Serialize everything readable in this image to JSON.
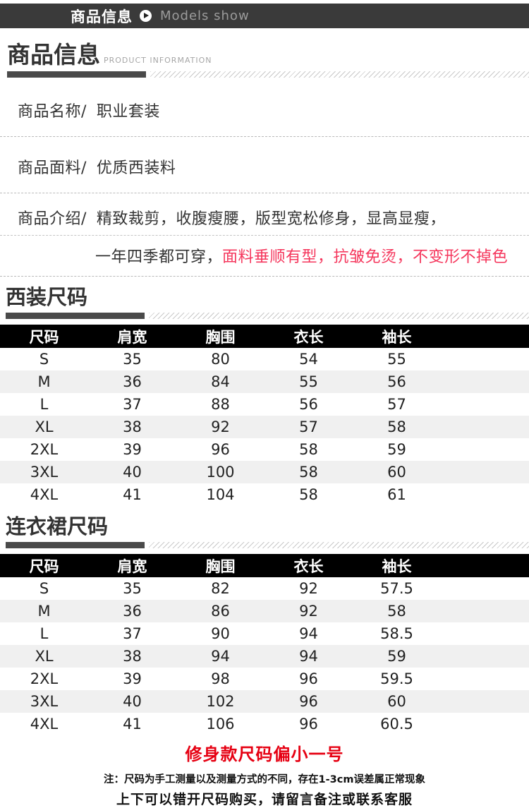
{
  "topbar": {
    "title": "商品信息",
    "subtitle": "Models show"
  },
  "product_info": {
    "heading": "商品信息",
    "heading_en": "PRODUCT INFORMATION",
    "rows": [
      {
        "label": "商品名称/",
        "value": "职业套装"
      },
      {
        "label": "商品面料/",
        "value": "优质西装料"
      },
      {
        "label": "商品介绍/",
        "value": "精致裁剪，收腹瘦腰，版型宽松修身，显高显瘦，"
      },
      {
        "label": "",
        "value": "一年四季都可穿，",
        "value_red": "面料垂顺有型，抗皱免烫，不变形不掉色"
      }
    ]
  },
  "size_tables": [
    {
      "heading": "西装尺码",
      "columns": [
        "尺码",
        "肩宽",
        "胸围",
        "衣长",
        "袖长"
      ],
      "rows": [
        [
          "S",
          "35",
          "80",
          "54",
          "55"
        ],
        [
          "M",
          "36",
          "84",
          "55",
          "56"
        ],
        [
          "L",
          "37",
          "88",
          "56",
          "57"
        ],
        [
          "XL",
          "38",
          "92",
          "57",
          "58"
        ],
        [
          "2XL",
          "39",
          "96",
          "58",
          "59"
        ],
        [
          "3XL",
          "40",
          "100",
          "58",
          "60"
        ],
        [
          "4XL",
          "41",
          "104",
          "58",
          "61"
        ]
      ]
    },
    {
      "heading": "连衣裙尺码",
      "columns": [
        "尺码",
        "肩宽",
        "胸围",
        "衣长",
        "袖长"
      ],
      "rows": [
        [
          "S",
          "35",
          "82",
          "92",
          "57.5"
        ],
        [
          "M",
          "36",
          "86",
          "92",
          "58"
        ],
        [
          "L",
          "37",
          "90",
          "94",
          "58.5"
        ],
        [
          "XL",
          "38",
          "94",
          "94",
          "59"
        ],
        [
          "2XL",
          "39",
          "98",
          "96",
          "59.5"
        ],
        [
          "3XL",
          "40",
          "102",
          "96",
          "60"
        ],
        [
          "4XL",
          "41",
          "106",
          "96",
          "60.5"
        ]
      ]
    }
  ],
  "footer": {
    "highlight": "修身款尺码偏小一号",
    "note1": "注：尺码为手工测量以及测量方式的不同，存在1-3cm误差属正常现象",
    "note2": "上下可以错开尺码购买，请留言备注或联系客服"
  },
  "colors": {
    "topbar_bg": "#3a3a3a",
    "table_header_bg": "#000000",
    "table_row_alt": "#f0f0f0",
    "body_red": "#f5365c",
    "accent_red": "#e60012"
  }
}
